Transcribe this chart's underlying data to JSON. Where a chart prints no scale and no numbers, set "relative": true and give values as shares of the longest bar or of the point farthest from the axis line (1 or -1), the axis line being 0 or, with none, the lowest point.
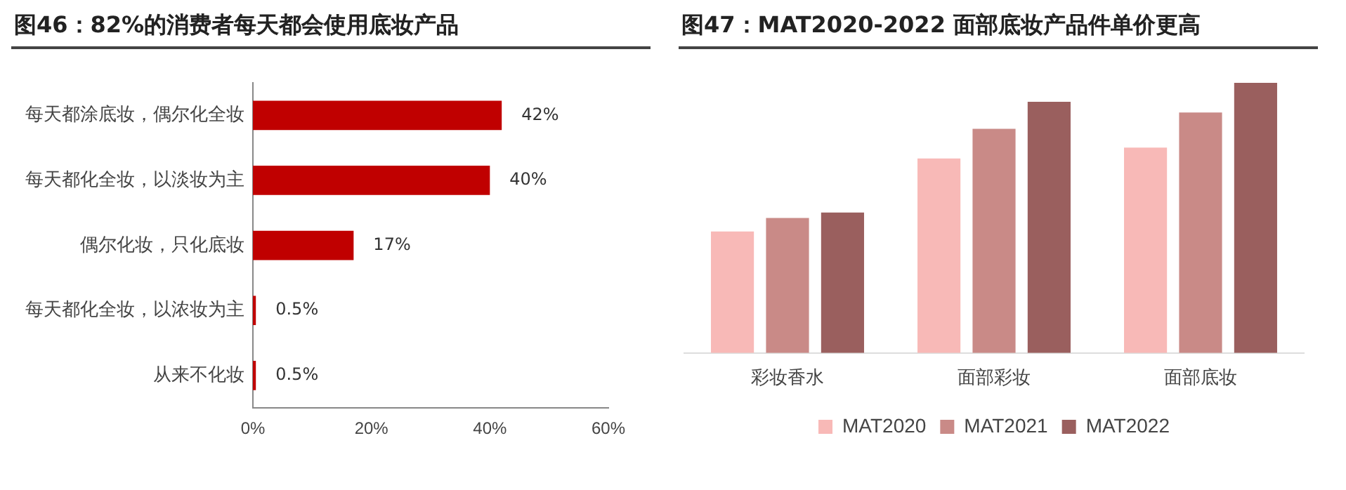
{
  "chart_data": [
    {
      "type": "bar",
      "title": "图46：82%的消费者每天都会使用底妆产品",
      "orientation": "horizontal",
      "categories": [
        "每天都涂底妆，偶尔化全妆",
        "每天都化全妆，以淡妆为主",
        "偶尔化妆，只化底妆",
        "每天都化全妆，以浓妆为主",
        "从来不化妆"
      ],
      "values": [
        42,
        40,
        17,
        0.5,
        0.5
      ],
      "color": "#c00000",
      "xlim": [
        0,
        60
      ],
      "xticks": [
        {
          "value": 0,
          "label": "0%"
        },
        {
          "value": 20,
          "label": "20%"
        },
        {
          "value": 40,
          "label": "40%"
        },
        {
          "value": 60,
          "label": "60%"
        }
      ],
      "value_labels": [
        "42%",
        "40%",
        "17%",
        "0.5%",
        "0.5%"
      ]
    },
    {
      "type": "bar",
      "title": "图47：MAT2020-2022 面部底妆产品件单价更高",
      "relative": true,
      "categories": [
        "彩妆香水",
        "面部彩妆",
        "面部底妆"
      ],
      "series": [
        {
          "name": "MAT2020",
          "color": "#f8b9b7",
          "values": [
            0.45,
            0.72,
            0.76
          ]
        },
        {
          "name": "MAT2021",
          "color": "#c98a87",
          "values": [
            0.5,
            0.83,
            0.89
          ]
        },
        {
          "name": "MAT2022",
          "color": "#9a5f5e",
          "values": [
            0.52,
            0.93,
            1
          ]
        }
      ],
      "legend": "bottom"
    }
  ]
}
